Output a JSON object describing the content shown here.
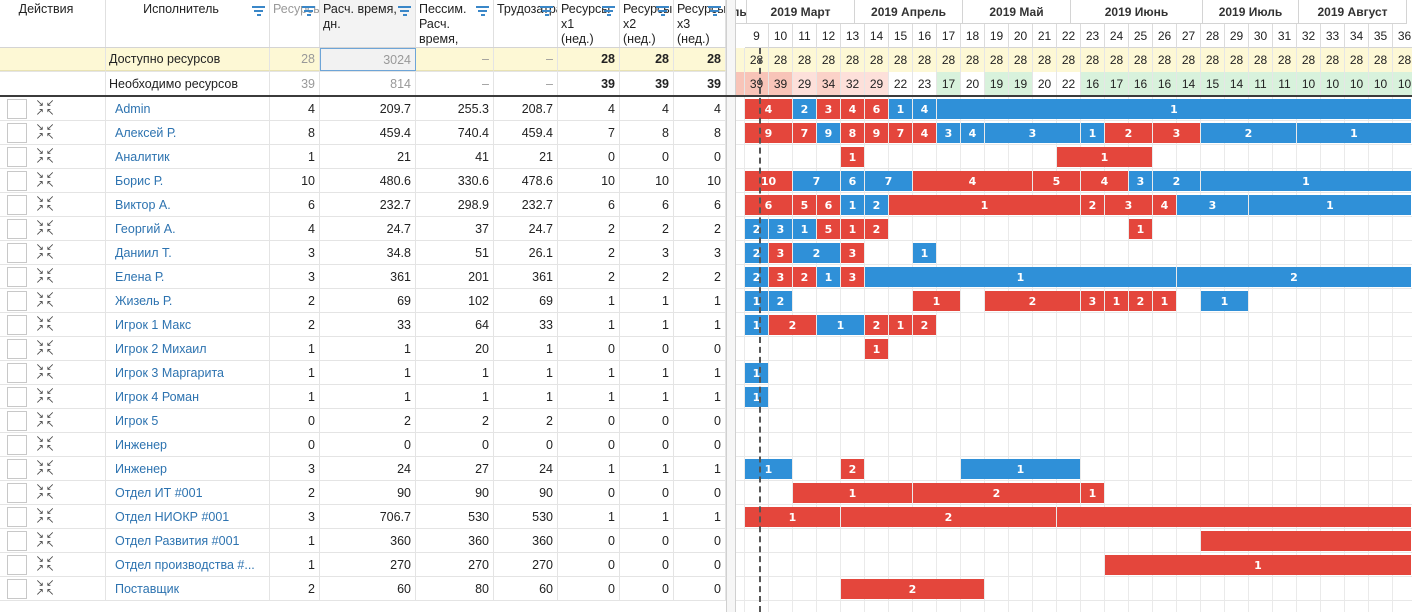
{
  "columns": [
    {
      "label": "Действия",
      "filter": false
    },
    {
      "label": "Исполнитель",
      "filter": true
    },
    {
      "label": "Ресурсы",
      "filter": true
    },
    {
      "label": "Расч. время, дн.",
      "filter": true
    },
    {
      "label": "Пессим. Расч. время, дн.",
      "filter": true
    },
    {
      "label": "Трудозатраты",
      "filter": true
    },
    {
      "label": "Ресурсы x1 (нед.)",
      "filter": true
    },
    {
      "label": "Ресурсы x2 (нед.)",
      "filter": true
    },
    {
      "label": "Ресурсы x3 (нед.)",
      "filter": true
    }
  ],
  "summary": [
    {
      "label": "Доступно ресурсов",
      "cells": [
        "28",
        "3024",
        "–",
        "–",
        "28",
        "28",
        "28"
      ]
    },
    {
      "label": "Необходимо ресурсов",
      "cells": [
        "39",
        "814",
        "–",
        "–",
        "39",
        "39",
        "39"
      ]
    }
  ],
  "rows": [
    {
      "name": "Admin",
      "values": [
        "4",
        "209.7",
        "255.3",
        "208.7",
        "4",
        "4",
        "4"
      ]
    },
    {
      "name": "Алексей Р.",
      "values": [
        "8",
        "459.4",
        "740.4",
        "459.4",
        "7",
        "8",
        "8"
      ]
    },
    {
      "name": "Аналитик",
      "values": [
        "1",
        "21",
        "41",
        "21",
        "0",
        "0",
        "0"
      ]
    },
    {
      "name": "Борис Р.",
      "values": [
        "10",
        "480.6",
        "330.6",
        "478.6",
        "10",
        "10",
        "10"
      ]
    },
    {
      "name": "Виктор А.",
      "values": [
        "6",
        "232.7",
        "298.9",
        "232.7",
        "6",
        "6",
        "6"
      ]
    },
    {
      "name": "Георгий А.",
      "values": [
        "4",
        "24.7",
        "37",
        "24.7",
        "2",
        "2",
        "2"
      ]
    },
    {
      "name": "Даниил Т.",
      "values": [
        "3",
        "34.8",
        "51",
        "26.1",
        "2",
        "3",
        "3"
      ]
    },
    {
      "name": "Елена Р.",
      "values": [
        "3",
        "361",
        "201",
        "361",
        "2",
        "2",
        "2"
      ]
    },
    {
      "name": "Жизель Р.",
      "values": [
        "2",
        "69",
        "102",
        "69",
        "1",
        "1",
        "1"
      ]
    },
    {
      "name": "Игрок 1 Макс",
      "values": [
        "2",
        "33",
        "64",
        "33",
        "1",
        "1",
        "1"
      ]
    },
    {
      "name": "Игрок 2 Михаил",
      "values": [
        "1",
        "1",
        "20",
        "1",
        "0",
        "0",
        "0"
      ]
    },
    {
      "name": "Игрок 3 Маргарита",
      "values": [
        "1",
        "1",
        "1",
        "1",
        "1",
        "1",
        "1"
      ]
    },
    {
      "name": "Игрок 4 Роман",
      "values": [
        "1",
        "1",
        "1",
        "1",
        "1",
        "1",
        "1"
      ]
    },
    {
      "name": "Игрок 5",
      "values": [
        "0",
        "2",
        "2",
        "2",
        "0",
        "0",
        "0"
      ]
    },
    {
      "name": "Инженер",
      "values": [
        "0",
        "0",
        "0",
        "0",
        "0",
        "0",
        "0"
      ]
    },
    {
      "name": "Инженер",
      "values": [
        "3",
        "24",
        "27",
        "24",
        "1",
        "1",
        "1"
      ]
    },
    {
      "name": "Отдел ИТ #001",
      "values": [
        "2",
        "90",
        "90",
        "90",
        "0",
        "0",
        "0"
      ]
    },
    {
      "name": "Отдел НИОКР #001",
      "values": [
        "3",
        "706.7",
        "530",
        "530",
        "1",
        "1",
        "1"
      ]
    },
    {
      "name": "Отдел Развития #001",
      "values": [
        "1",
        "360",
        "360",
        "360",
        "0",
        "0",
        "0"
      ]
    },
    {
      "name": "Отдел производства #...",
      "values": [
        "1",
        "270",
        "270",
        "270",
        "0",
        "0",
        "0"
      ]
    },
    {
      "name": "Поставщик",
      "values": [
        "2",
        "60",
        "80",
        "60",
        "0",
        "0",
        "0"
      ]
    }
  ],
  "gantt": {
    "months": [
      {
        "label": "враль",
        "span": 1.5
      },
      {
        "label": "2019 Март",
        "span": 4.5
      },
      {
        "label": "2019 Апрель",
        "span": 4.5
      },
      {
        "label": "2019 Май",
        "span": 4.5
      },
      {
        "label": "2019 Июнь",
        "span": 5.5
      },
      {
        "label": "2019 Июль",
        "span": 4
      },
      {
        "label": "2019 Август",
        "span": 4.5
      }
    ],
    "weeks": [
      "9",
      "10",
      "11",
      "12",
      "13",
      "14",
      "15",
      "16",
      "17",
      "18",
      "19",
      "20",
      "21",
      "22",
      "23",
      "24",
      "25",
      "26",
      "27",
      "28",
      "29",
      "30",
      "31",
      "32",
      "33",
      "34",
      "35",
      "36"
    ],
    "available": [
      "28",
      "28",
      "28",
      "28",
      "28",
      "28",
      "28",
      "28",
      "28",
      "28",
      "28",
      "28",
      "28",
      "28",
      "28",
      "28",
      "28",
      "28",
      "28",
      "28",
      "28",
      "28",
      "28",
      "28",
      "28",
      "28",
      "28",
      "28"
    ],
    "needed": [
      "39",
      "39",
      "29",
      "34",
      "32",
      "29",
      "22",
      "23",
      "17",
      "20",
      "19",
      "19",
      "20",
      "22",
      "16",
      "17",
      "16",
      "16",
      "14",
      "15",
      "14",
      "11",
      "11",
      "10",
      "10",
      "10",
      "10",
      "10"
    ],
    "needed_colors": [
      "#f8c4b8",
      "#f8c4b8",
      "#fde0da",
      "#fbd2c8",
      "#fde0da",
      "#fde0da",
      "#ffffff",
      "#ffffff",
      "#d8f2dc",
      "#ffffff",
      "#d8f2dc",
      "#d8f2dc",
      "#ffffff",
      "#ffffff",
      "#d8f2dc",
      "#d8f2dc",
      "#d8f2dc",
      "#d8f2dc",
      "#d8f2dc",
      "#d8f2dc",
      "#d8f2dc",
      "#d8f2dc",
      "#d8f2dc",
      "#d8f2dc",
      "#d8f2dc",
      "#d8f2dc",
      "#d8f2dc",
      "#d8f2dc"
    ],
    "bars": [
      [
        {
          "s": 0,
          "e": 2,
          "c": "red",
          "l": "4"
        },
        {
          "s": 2,
          "e": 3,
          "c": "blue",
          "l": "2"
        },
        {
          "s": 3,
          "e": 4,
          "c": "red",
          "l": "3"
        },
        {
          "s": 4,
          "e": 5,
          "c": "red",
          "l": "4"
        },
        {
          "s": 5,
          "e": 6,
          "c": "red",
          "l": "6"
        },
        {
          "s": 6,
          "e": 7,
          "c": "blue",
          "l": "1"
        },
        {
          "s": 7,
          "e": 8,
          "c": "blue",
          "l": "4"
        },
        {
          "s": 8,
          "e": 28,
          "c": "blue",
          "l": "1"
        }
      ],
      [
        {
          "s": 0,
          "e": 2,
          "c": "red",
          "l": "9"
        },
        {
          "s": 2,
          "e": 3,
          "c": "red",
          "l": "7"
        },
        {
          "s": 3,
          "e": 4,
          "c": "blue",
          "l": "9"
        },
        {
          "s": 4,
          "e": 5,
          "c": "red",
          "l": "8"
        },
        {
          "s": 5,
          "e": 6,
          "c": "red",
          "l": "9"
        },
        {
          "s": 6,
          "e": 7,
          "c": "red",
          "l": "7"
        },
        {
          "s": 7,
          "e": 8,
          "c": "red",
          "l": "4"
        },
        {
          "s": 8,
          "e": 9,
          "c": "blue",
          "l": "3"
        },
        {
          "s": 9,
          "e": 10,
          "c": "blue",
          "l": "4"
        },
        {
          "s": 10,
          "e": 14,
          "c": "blue",
          "l": "3"
        },
        {
          "s": 14,
          "e": 15,
          "c": "blue",
          "l": "1"
        },
        {
          "s": 15,
          "e": 17,
          "c": "red",
          "l": "2"
        },
        {
          "s": 17,
          "e": 19,
          "c": "red",
          "l": "3"
        },
        {
          "s": 19,
          "e": 23,
          "c": "blue",
          "l": "2"
        },
        {
          "s": 23,
          "e": 28,
          "c": "blue",
          "l": "1"
        }
      ],
      [
        {
          "s": 4,
          "e": 5,
          "c": "red",
          "l": "1"
        },
        {
          "s": 13,
          "e": 17,
          "c": "red",
          "l": "1"
        }
      ],
      [
        {
          "s": 0,
          "e": 2,
          "c": "red",
          "l": "10"
        },
        {
          "s": 2,
          "e": 4,
          "c": "blue",
          "l": "7"
        },
        {
          "s": 4,
          "e": 5,
          "c": "blue",
          "l": "6"
        },
        {
          "s": 5,
          "e": 7,
          "c": "blue",
          "l": "7"
        },
        {
          "s": 7,
          "e": 12,
          "c": "red",
          "l": "4"
        },
        {
          "s": 12,
          "e": 14,
          "c": "red",
          "l": "5"
        },
        {
          "s": 14,
          "e": 16,
          "c": "red",
          "l": "4"
        },
        {
          "s": 16,
          "e": 17,
          "c": "blue",
          "l": "3"
        },
        {
          "s": 17,
          "e": 19,
          "c": "blue",
          "l": "2"
        },
        {
          "s": 19,
          "e": 28,
          "c": "blue",
          "l": "1"
        }
      ],
      [
        {
          "s": 0,
          "e": 2,
          "c": "red",
          "l": "6"
        },
        {
          "s": 2,
          "e": 3,
          "c": "red",
          "l": "5"
        },
        {
          "s": 3,
          "e": 4,
          "c": "red",
          "l": "6"
        },
        {
          "s": 4,
          "e": 5,
          "c": "blue",
          "l": "1"
        },
        {
          "s": 5,
          "e": 6,
          "c": "blue",
          "l": "2"
        },
        {
          "s": 6,
          "e": 14,
          "c": "red",
          "l": "1"
        },
        {
          "s": 14,
          "e": 15,
          "c": "red",
          "l": "2"
        },
        {
          "s": 15,
          "e": 17,
          "c": "red",
          "l": "3"
        },
        {
          "s": 17,
          "e": 18,
          "c": "red",
          "l": "4"
        },
        {
          "s": 18,
          "e": 21,
          "c": "blue",
          "l": "3"
        },
        {
          "s": 21,
          "e": 28,
          "c": "blue",
          "l": "1"
        }
      ],
      [
        {
          "s": 0,
          "e": 1,
          "c": "blue",
          "l": "2"
        },
        {
          "s": 1,
          "e": 2,
          "c": "blue",
          "l": "3"
        },
        {
          "s": 2,
          "e": 3,
          "c": "blue",
          "l": "1"
        },
        {
          "s": 3,
          "e": 4,
          "c": "red",
          "l": "5"
        },
        {
          "s": 4,
          "e": 5,
          "c": "red",
          "l": "1"
        },
        {
          "s": 5,
          "e": 6,
          "c": "red",
          "l": "2"
        },
        {
          "s": 16,
          "e": 17,
          "c": "red",
          "l": "1"
        }
      ],
      [
        {
          "s": 0,
          "e": 1,
          "c": "blue",
          "l": "2"
        },
        {
          "s": 1,
          "e": 2,
          "c": "red",
          "l": "3"
        },
        {
          "s": 2,
          "e": 4,
          "c": "blue",
          "l": "2"
        },
        {
          "s": 4,
          "e": 5,
          "c": "red",
          "l": "3"
        },
        {
          "s": 7,
          "e": 8,
          "c": "blue",
          "l": "1"
        }
      ],
      [
        {
          "s": 0,
          "e": 1,
          "c": "blue",
          "l": "2"
        },
        {
          "s": 1,
          "e": 2,
          "c": "red",
          "l": "3"
        },
        {
          "s": 2,
          "e": 3,
          "c": "red",
          "l": "2"
        },
        {
          "s": 3,
          "e": 4,
          "c": "blue",
          "l": "1"
        },
        {
          "s": 4,
          "e": 5,
          "c": "red",
          "l": "3"
        },
        {
          "s": 5,
          "e": 18,
          "c": "blue",
          "l": "1"
        },
        {
          "s": 18,
          "e": 28,
          "c": "blue",
          "l": "2"
        }
      ],
      [
        {
          "s": 0,
          "e": 1,
          "c": "blue",
          "l": "1"
        },
        {
          "s": 1,
          "e": 2,
          "c": "blue",
          "l": "2"
        },
        {
          "s": 7,
          "e": 9,
          "c": "red",
          "l": "1"
        },
        {
          "s": 10,
          "e": 14,
          "c": "red",
          "l": "2"
        },
        {
          "s": 14,
          "e": 15,
          "c": "red",
          "l": "3"
        },
        {
          "s": 15,
          "e": 16,
          "c": "red",
          "l": "1"
        },
        {
          "s": 16,
          "e": 17,
          "c": "red",
          "l": "2"
        },
        {
          "s": 17,
          "e": 18,
          "c": "red",
          "l": "1"
        },
        {
          "s": 19,
          "e": 21,
          "c": "blue",
          "l": "1"
        }
      ],
      [
        {
          "s": 0,
          "e": 1,
          "c": "blue",
          "l": "1"
        },
        {
          "s": 1,
          "e": 3,
          "c": "red",
          "l": "2"
        },
        {
          "s": 3,
          "e": 5,
          "c": "blue",
          "l": "1"
        },
        {
          "s": 5,
          "e": 6,
          "c": "red",
          "l": "2"
        },
        {
          "s": 6,
          "e": 7,
          "c": "red",
          "l": "1"
        },
        {
          "s": 7,
          "e": 8,
          "c": "red",
          "l": "2"
        }
      ],
      [
        {
          "s": 5,
          "e": 6,
          "c": "red",
          "l": "1"
        }
      ],
      [
        {
          "s": 0,
          "e": 1,
          "c": "blue",
          "l": "1"
        }
      ],
      [
        {
          "s": 0,
          "e": 1,
          "c": "blue",
          "l": "1"
        }
      ],
      [],
      [],
      [
        {
          "s": 0,
          "e": 2,
          "c": "blue",
          "l": "1"
        },
        {
          "s": 4,
          "e": 5,
          "c": "red",
          "l": "2"
        },
        {
          "s": 9,
          "e": 14,
          "c": "blue",
          "l": "1"
        }
      ],
      [
        {
          "s": 2,
          "e": 7,
          "c": "red",
          "l": "1"
        },
        {
          "s": 7,
          "e": 14,
          "c": "red",
          "l": "2"
        },
        {
          "s": 14,
          "e": 15,
          "c": "red",
          "l": "1"
        }
      ],
      [
        {
          "s": 0,
          "e": 4,
          "c": "red",
          "l": "1"
        },
        {
          "s": 4,
          "e": 13,
          "c": "red",
          "l": "2"
        },
        {
          "s": 13,
          "e": 28,
          "c": "red",
          "l": ""
        }
      ],
      [
        {
          "s": 19,
          "e": 28,
          "c": "red",
          "l": ""
        }
      ],
      [
        {
          "s": 15,
          "e": 28,
          "c": "red",
          "l": "1"
        }
      ],
      [
        {
          "s": 4,
          "e": 10,
          "c": "red",
          "l": "2"
        }
      ]
    ]
  }
}
